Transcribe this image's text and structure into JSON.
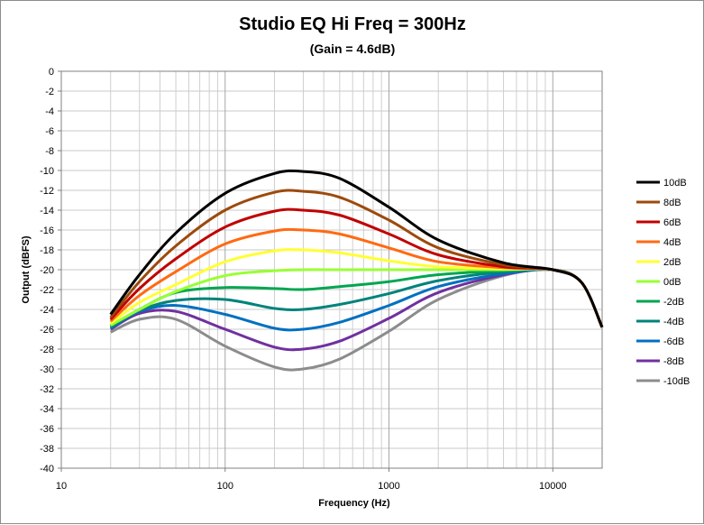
{
  "chart_data": {
    "type": "line",
    "title": "Studio EQ Hi Freq = 300Hz",
    "subtitle": "(Gain = 4.6dB)",
    "xlabel": "Frequency (Hz)",
    "ylabel": "Output (dBFS)",
    "x_scale": "log",
    "xlim": [
      10,
      20000
    ],
    "ylim": [
      -40,
      0
    ],
    "x_ticks": [
      "10",
      "100",
      "1000",
      "10000"
    ],
    "y_ticks": [
      "0",
      "-2",
      "-4",
      "-6",
      "-8",
      "-10",
      "-12",
      "-14",
      "-16",
      "-18",
      "-20",
      "-22",
      "-24",
      "-26",
      "-28",
      "-30",
      "-32",
      "-34",
      "-36",
      "-38",
      "-40"
    ],
    "grid": true,
    "legend_position": "right",
    "x": [
      20,
      30,
      50,
      100,
      200,
      300,
      500,
      1000,
      2000,
      5000,
      10000,
      15000,
      20000
    ],
    "series": [
      {
        "name": "10dB",
        "color": "#000000",
        "values": [
          -24.5,
          -20.5,
          -16.3,
          -12.3,
          -10.3,
          -10.1,
          -10.8,
          -13.7,
          -17.0,
          -19.3,
          -20.0,
          -21.3,
          -25.8
        ]
      },
      {
        "name": "8dB",
        "color": "#9c4a0c",
        "values": [
          -24.8,
          -21.2,
          -17.6,
          -14.0,
          -12.2,
          -12.1,
          -12.7,
          -15.0,
          -17.8,
          -19.5,
          -20.0,
          -21.3,
          -25.8
        ]
      },
      {
        "name": "6dB",
        "color": "#c00000",
        "values": [
          -25.0,
          -21.9,
          -18.9,
          -15.7,
          -14.1,
          -14.0,
          -14.5,
          -16.4,
          -18.5,
          -19.7,
          -20.0,
          -21.3,
          -25.8
        ]
      },
      {
        "name": "4dB",
        "color": "#ff6a13",
        "values": [
          -25.2,
          -22.6,
          -20.2,
          -17.4,
          -16.1,
          -16.0,
          -16.4,
          -17.8,
          -19.2,
          -19.8,
          -20.0,
          -21.3,
          -25.8
        ]
      },
      {
        "name": "2dB",
        "color": "#ffff33",
        "values": [
          -25.4,
          -23.3,
          -21.5,
          -19.2,
          -18.1,
          -18.0,
          -18.3,
          -19.1,
          -19.7,
          -19.9,
          -20.0,
          -21.3,
          -25.8
        ]
      },
      {
        "name": "0dB",
        "color": "#99ff33",
        "values": [
          -25.6,
          -24.0,
          -22.2,
          -20.6,
          -20.1,
          -20.0,
          -20.0,
          -20.0,
          -20.0,
          -20.0,
          -20.0,
          -21.3,
          -25.8
        ]
      },
      {
        "name": "-2dB",
        "color": "#00a650",
        "values": [
          -25.7,
          -24.0,
          -22.3,
          -21.8,
          -21.9,
          -22.0,
          -21.7,
          -21.2,
          -20.5,
          -20.1,
          -20.0,
          -21.3,
          -25.8
        ]
      },
      {
        "name": "-4dB",
        "color": "#00837a",
        "values": [
          -25.8,
          -24.1,
          -23.1,
          -23.0,
          -23.9,
          -24.0,
          -23.5,
          -22.4,
          -21.1,
          -20.2,
          -20.0,
          -21.3,
          -25.8
        ]
      },
      {
        "name": "-6dB",
        "color": "#0070c0",
        "values": [
          -25.9,
          -24.2,
          -23.6,
          -24.5,
          -25.9,
          -26.0,
          -25.3,
          -23.6,
          -21.7,
          -20.4,
          -20.0,
          -21.3,
          -25.8
        ]
      },
      {
        "name": "-8dB",
        "color": "#7030a0",
        "values": [
          -26.0,
          -24.4,
          -24.2,
          -26.0,
          -27.8,
          -28.0,
          -27.2,
          -24.9,
          -22.3,
          -20.5,
          -20.0,
          -21.3,
          -25.8
        ]
      },
      {
        "name": "-10dB",
        "color": "#8c8c8c",
        "values": [
          -26.3,
          -25.0,
          -25.0,
          -27.7,
          -29.8,
          -30.0,
          -29.0,
          -26.2,
          -23.0,
          -20.6,
          -20.0,
          -21.3,
          -25.8
        ]
      }
    ]
  }
}
